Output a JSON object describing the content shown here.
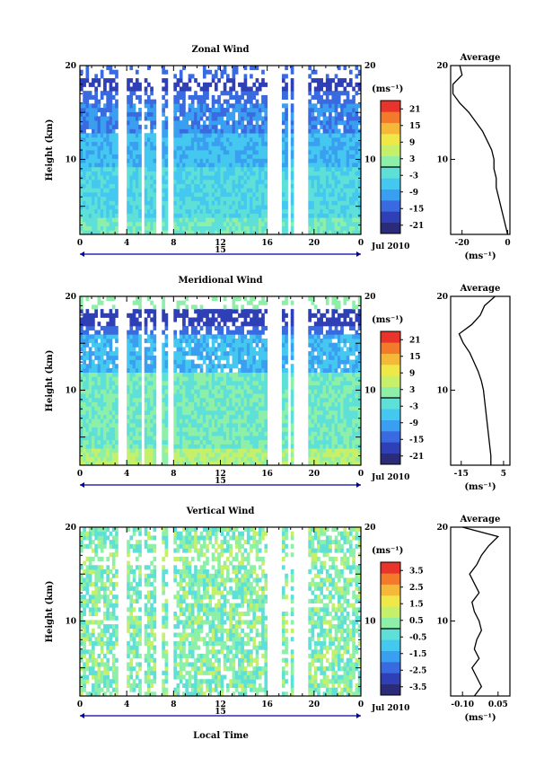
{
  "figure": {
    "xlabel": "Local Time",
    "date_label": "Jul 2010",
    "day_label": "15",
    "unit_label": "(ms⁻¹)",
    "avg_unit_label": "(ms⁻¹)",
    "ylabel": "Height (km)"
  },
  "chart_data": [
    {
      "type": "heatmap",
      "title": "Zonal Wind",
      "xlabel": "Local Time",
      "ylabel": "Height (km)",
      "x_ticks": [
        "0",
        "4",
        "8",
        "12",
        "16",
        "20",
        "0"
      ],
      "x_range": [
        0,
        24
      ],
      "y_ticks": [
        "20",
        "10"
      ],
      "y_range": [
        2,
        20
      ],
      "colorbar": {
        "unit": "(ms⁻¹)",
        "ticks": [
          "21",
          "15",
          "9",
          "3",
          "-3",
          "-9",
          "-15",
          "-21"
        ],
        "range": [
          -24,
          24
        ],
        "colors": [
          "#2a2c7a",
          "#2f3fb5",
          "#3a6ae0",
          "#3a9ff0",
          "#44c8f0",
          "#5ee0d8",
          "#8ef0a8",
          "#c6f06a",
          "#f0e848",
          "#f6b838",
          "#f27a2a",
          "#e8342a"
        ]
      },
      "data_gaps_hours": [
        [
          3.3,
          4.0
        ],
        [
          5.2,
          5.6
        ],
        [
          6.6,
          7.0
        ],
        [
          7.6,
          7.9
        ],
        [
          16.1,
          17.3
        ],
        [
          17.7,
          18.0
        ],
        [
          18.2,
          19.5
        ]
      ],
      "profile": {
        "title": "Average",
        "x_ticks": [
          "-20",
          "0"
        ],
        "x_range": [
          -25,
          1
        ],
        "heights": [
          2,
          3,
          4,
          5,
          6,
          7,
          8,
          9,
          10,
          11,
          12,
          13,
          14,
          15,
          16,
          17,
          18,
          19,
          20
        ],
        "values": [
          0,
          -1,
          -2,
          -3,
          -4,
          -5,
          -5,
          -6,
          -6,
          -7,
          -9,
          -11,
          -14,
          -17,
          -21,
          -24,
          -24,
          -20,
          -21
        ]
      }
    },
    {
      "type": "heatmap",
      "title": "Meridional Wind",
      "xlabel": "Local Time",
      "ylabel": "Height (km)",
      "x_ticks": [
        "0",
        "4",
        "8",
        "12",
        "16",
        "20",
        "0"
      ],
      "x_range": [
        0,
        24
      ],
      "y_ticks": [
        "20",
        "10"
      ],
      "y_range": [
        2,
        20
      ],
      "colorbar": {
        "unit": "(ms⁻¹)",
        "ticks": [
          "21",
          "15",
          "9",
          "3",
          "-3",
          "-9",
          "-15",
          "-21"
        ],
        "range": [
          -24,
          24
        ],
        "colors": [
          "#2a2c7a",
          "#2f3fb5",
          "#3a6ae0",
          "#3a9ff0",
          "#44c8f0",
          "#5ee0d8",
          "#8ef0a8",
          "#c6f06a",
          "#f0e848",
          "#f6b838",
          "#f27a2a",
          "#e8342a"
        ]
      },
      "data_gaps_hours": [
        [
          3.3,
          4.0
        ],
        [
          5.2,
          5.6
        ],
        [
          6.6,
          7.0
        ],
        [
          7.6,
          7.9
        ],
        [
          16.1,
          17.3
        ],
        [
          17.7,
          18.0
        ],
        [
          18.2,
          19.5
        ]
      ],
      "profile": {
        "title": "Average",
        "x_ticks": [
          "-15",
          "5"
        ],
        "x_range": [
          -20,
          8
        ],
        "heights": [
          2,
          3,
          4,
          5,
          6,
          7,
          8,
          9,
          10,
          11,
          12,
          13,
          14,
          15,
          16,
          17,
          18,
          19,
          20
        ],
        "values": [
          -1,
          -1,
          -1.5,
          -2,
          -2.5,
          -3,
          -3.5,
          -4,
          -4.5,
          -5.5,
          -7,
          -9,
          -11,
          -14,
          -16,
          -10,
          -6,
          -4,
          1
        ]
      }
    },
    {
      "type": "heatmap",
      "title": "Vertical Wind",
      "xlabel": "Local Time",
      "ylabel": "Height (km)",
      "x_ticks": [
        "0",
        "4",
        "8",
        "12",
        "16",
        "20",
        "0"
      ],
      "x_range": [
        0,
        24
      ],
      "y_ticks": [
        "20",
        "10"
      ],
      "y_range": [
        2,
        20
      ],
      "colorbar": {
        "unit": "(ms⁻¹)",
        "ticks": [
          "3.5",
          "2.5",
          "1.5",
          "0.5",
          "-0.5",
          "-1.5",
          "-2.5",
          "-3.5"
        ],
        "range": [
          -4,
          4
        ],
        "colors": [
          "#2a2c7a",
          "#2f3fb5",
          "#3a6ae0",
          "#3a9ff0",
          "#44c8f0",
          "#5ee0d8",
          "#8ef0a8",
          "#c6f06a",
          "#f0e848",
          "#f6b838",
          "#f27a2a",
          "#e8342a"
        ]
      },
      "data_gaps_hours": [
        [
          3.3,
          4.0
        ],
        [
          5.2,
          5.6
        ],
        [
          6.6,
          7.0
        ],
        [
          7.6,
          7.9
        ],
        [
          16.1,
          17.3
        ],
        [
          17.7,
          18.0
        ],
        [
          18.2,
          19.5
        ]
      ],
      "profile": {
        "title": "Average",
        "x_ticks": [
          "-0.10",
          "0.05"
        ],
        "x_range": [
          -0.15,
          0.1
        ],
        "heights": [
          2,
          3,
          4,
          5,
          6,
          7,
          8,
          9,
          10,
          11,
          12,
          13,
          14,
          15,
          16,
          17,
          18,
          19,
          20
        ],
        "values": [
          -0.05,
          -0.02,
          -0.04,
          -0.06,
          -0.03,
          -0.05,
          -0.04,
          -0.02,
          -0.03,
          -0.05,
          -0.06,
          -0.03,
          -0.05,
          -0.07,
          -0.04,
          -0.02,
          0.01,
          0.05,
          -0.1
        ]
      }
    }
  ]
}
